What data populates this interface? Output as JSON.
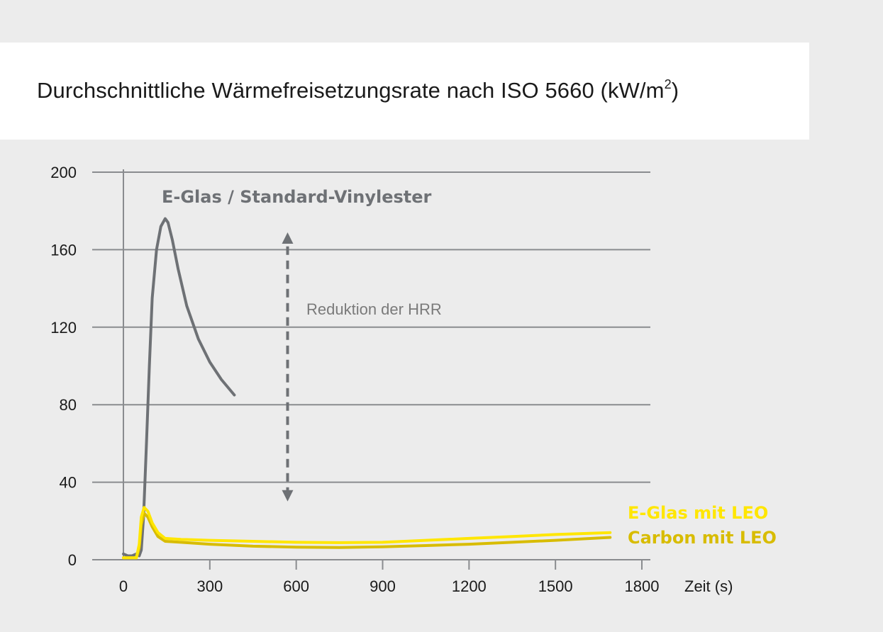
{
  "chart_data": {
    "type": "line",
    "title": "Durchschnittliche Wärmefreisetzungsrate nach ISO 5660 (kW/m",
    "title_superscript": "2",
    "title_suffix": ")",
    "xlabel": "Zeit (s)",
    "ylabel": "",
    "xlim": [
      0,
      1800
    ],
    "ylim": [
      0,
      200
    ],
    "x_ticks": [
      0,
      300,
      600,
      900,
      1200,
      1500,
      1800
    ],
    "y_ticks": [
      0,
      40,
      80,
      120,
      160,
      200
    ],
    "grid": "horizontal",
    "series": [
      {
        "name": "E-Glas / Standard-Vinylester",
        "color": "#6e7175",
        "x": [
          0,
          15,
          30,
          45,
          55,
          62,
          70,
          80,
          90,
          100,
          115,
          130,
          145,
          155,
          170,
          190,
          220,
          260,
          300,
          340,
          385
        ],
        "y": [
          3,
          2,
          2,
          3,
          2,
          5,
          22,
          60,
          100,
          135,
          160,
          172,
          176,
          174,
          165,
          150,
          131,
          114,
          102,
          93,
          85
        ]
      },
      {
        "name": "E-Glas mit LEO",
        "color": "#ffe600",
        "x": [
          0,
          30,
          45,
          55,
          62,
          72,
          85,
          100,
          120,
          145,
          200,
          300,
          450,
          600,
          750,
          900,
          1050,
          1200,
          1350,
          1500,
          1690
        ],
        "y": [
          1,
          1,
          1,
          8,
          22,
          27,
          25,
          19,
          14,
          11,
          10.5,
          10,
          9.5,
          9,
          8.8,
          9,
          10,
          11,
          12,
          13,
          14
        ]
      },
      {
        "name": "Carbon mit LEO",
        "color": "#d8bc00",
        "x": [
          0,
          30,
          45,
          55,
          62,
          72,
          85,
          100,
          120,
          145,
          200,
          300,
          450,
          600,
          750,
          900,
          1050,
          1200,
          1350,
          1500,
          1690
        ],
        "y": [
          1,
          1,
          1,
          6,
          18,
          24,
          22,
          17,
          12,
          9.5,
          9,
          8,
          7,
          6.5,
          6.3,
          6.7,
          7.3,
          8,
          9,
          10,
          11.5
        ]
      }
    ],
    "annotations": [
      {
        "text": "E-Glas / Standard-Vinylester",
        "color": "#6e7175"
      },
      {
        "text": "Reduktion der HRR",
        "color": "#7a7a7a"
      },
      {
        "text": "E-Glas mit LEO",
        "color": "#ffe600"
      },
      {
        "text": "Carbon mit LEO",
        "color": "#d8bc00"
      }
    ],
    "arrow": {
      "x": 570,
      "y_from": 33,
      "y_to": 166,
      "style": "dashed-double-headed",
      "color": "#6e7175"
    }
  }
}
